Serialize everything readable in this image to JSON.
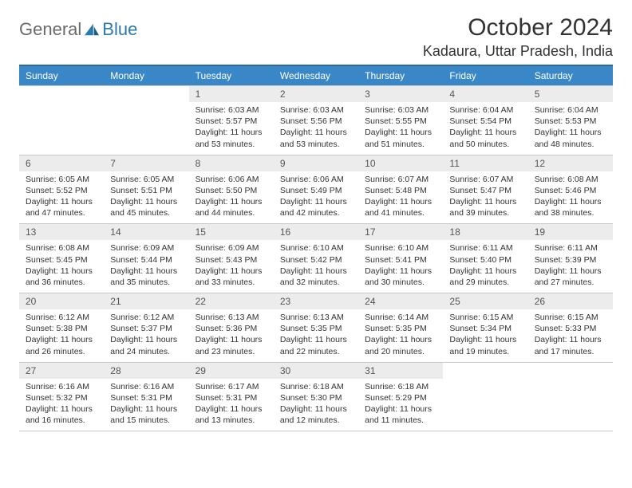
{
  "brand": {
    "part1": "General",
    "part2": "Blue"
  },
  "title": "October 2024",
  "location": "Kadaura, Uttar Pradesh, India",
  "colors": {
    "header_bg": "#3a87c8",
    "header_border": "#2a6aa0",
    "daynum_bg": "#ececec",
    "cell_border": "#c8c8c8",
    "text": "#333333",
    "brand_gray": "#6a6a6a",
    "brand_blue": "#2a7ab0",
    "background": "#ffffff"
  },
  "weekdays": [
    "Sunday",
    "Monday",
    "Tuesday",
    "Wednesday",
    "Thursday",
    "Friday",
    "Saturday"
  ],
  "leading_blanks": 2,
  "days": [
    {
      "n": "1",
      "sr": "6:03 AM",
      "ss": "5:57 PM",
      "dl": "11 hours and 53 minutes."
    },
    {
      "n": "2",
      "sr": "6:03 AM",
      "ss": "5:56 PM",
      "dl": "11 hours and 53 minutes."
    },
    {
      "n": "3",
      "sr": "6:03 AM",
      "ss": "5:55 PM",
      "dl": "11 hours and 51 minutes."
    },
    {
      "n": "4",
      "sr": "6:04 AM",
      "ss": "5:54 PM",
      "dl": "11 hours and 50 minutes."
    },
    {
      "n": "5",
      "sr": "6:04 AM",
      "ss": "5:53 PM",
      "dl": "11 hours and 48 minutes."
    },
    {
      "n": "6",
      "sr": "6:05 AM",
      "ss": "5:52 PM",
      "dl": "11 hours and 47 minutes."
    },
    {
      "n": "7",
      "sr": "6:05 AM",
      "ss": "5:51 PM",
      "dl": "11 hours and 45 minutes."
    },
    {
      "n": "8",
      "sr": "6:06 AM",
      "ss": "5:50 PM",
      "dl": "11 hours and 44 minutes."
    },
    {
      "n": "9",
      "sr": "6:06 AM",
      "ss": "5:49 PM",
      "dl": "11 hours and 42 minutes."
    },
    {
      "n": "10",
      "sr": "6:07 AM",
      "ss": "5:48 PM",
      "dl": "11 hours and 41 minutes."
    },
    {
      "n": "11",
      "sr": "6:07 AM",
      "ss": "5:47 PM",
      "dl": "11 hours and 39 minutes."
    },
    {
      "n": "12",
      "sr": "6:08 AM",
      "ss": "5:46 PM",
      "dl": "11 hours and 38 minutes."
    },
    {
      "n": "13",
      "sr": "6:08 AM",
      "ss": "5:45 PM",
      "dl": "11 hours and 36 minutes."
    },
    {
      "n": "14",
      "sr": "6:09 AM",
      "ss": "5:44 PM",
      "dl": "11 hours and 35 minutes."
    },
    {
      "n": "15",
      "sr": "6:09 AM",
      "ss": "5:43 PM",
      "dl": "11 hours and 33 minutes."
    },
    {
      "n": "16",
      "sr": "6:10 AM",
      "ss": "5:42 PM",
      "dl": "11 hours and 32 minutes."
    },
    {
      "n": "17",
      "sr": "6:10 AM",
      "ss": "5:41 PM",
      "dl": "11 hours and 30 minutes."
    },
    {
      "n": "18",
      "sr": "6:11 AM",
      "ss": "5:40 PM",
      "dl": "11 hours and 29 minutes."
    },
    {
      "n": "19",
      "sr": "6:11 AM",
      "ss": "5:39 PM",
      "dl": "11 hours and 27 minutes."
    },
    {
      "n": "20",
      "sr": "6:12 AM",
      "ss": "5:38 PM",
      "dl": "11 hours and 26 minutes."
    },
    {
      "n": "21",
      "sr": "6:12 AM",
      "ss": "5:37 PM",
      "dl": "11 hours and 24 minutes."
    },
    {
      "n": "22",
      "sr": "6:13 AM",
      "ss": "5:36 PM",
      "dl": "11 hours and 23 minutes."
    },
    {
      "n": "23",
      "sr": "6:13 AM",
      "ss": "5:35 PM",
      "dl": "11 hours and 22 minutes."
    },
    {
      "n": "24",
      "sr": "6:14 AM",
      "ss": "5:35 PM",
      "dl": "11 hours and 20 minutes."
    },
    {
      "n": "25",
      "sr": "6:15 AM",
      "ss": "5:34 PM",
      "dl": "11 hours and 19 minutes."
    },
    {
      "n": "26",
      "sr": "6:15 AM",
      "ss": "5:33 PM",
      "dl": "11 hours and 17 minutes."
    },
    {
      "n": "27",
      "sr": "6:16 AM",
      "ss": "5:32 PM",
      "dl": "11 hours and 16 minutes."
    },
    {
      "n": "28",
      "sr": "6:16 AM",
      "ss": "5:31 PM",
      "dl": "11 hours and 15 minutes."
    },
    {
      "n": "29",
      "sr": "6:17 AM",
      "ss": "5:31 PM",
      "dl": "11 hours and 13 minutes."
    },
    {
      "n": "30",
      "sr": "6:18 AM",
      "ss": "5:30 PM",
      "dl": "11 hours and 12 minutes."
    },
    {
      "n": "31",
      "sr": "6:18 AM",
      "ss": "5:29 PM",
      "dl": "11 hours and 11 minutes."
    }
  ],
  "labels": {
    "sunrise": "Sunrise:",
    "sunset": "Sunset:",
    "daylight": "Daylight:"
  },
  "typography": {
    "title_fontsize": 30,
    "location_fontsize": 18,
    "weekday_fontsize": 12,
    "daynum_fontsize": 12,
    "body_fontsize": 10.5
  }
}
